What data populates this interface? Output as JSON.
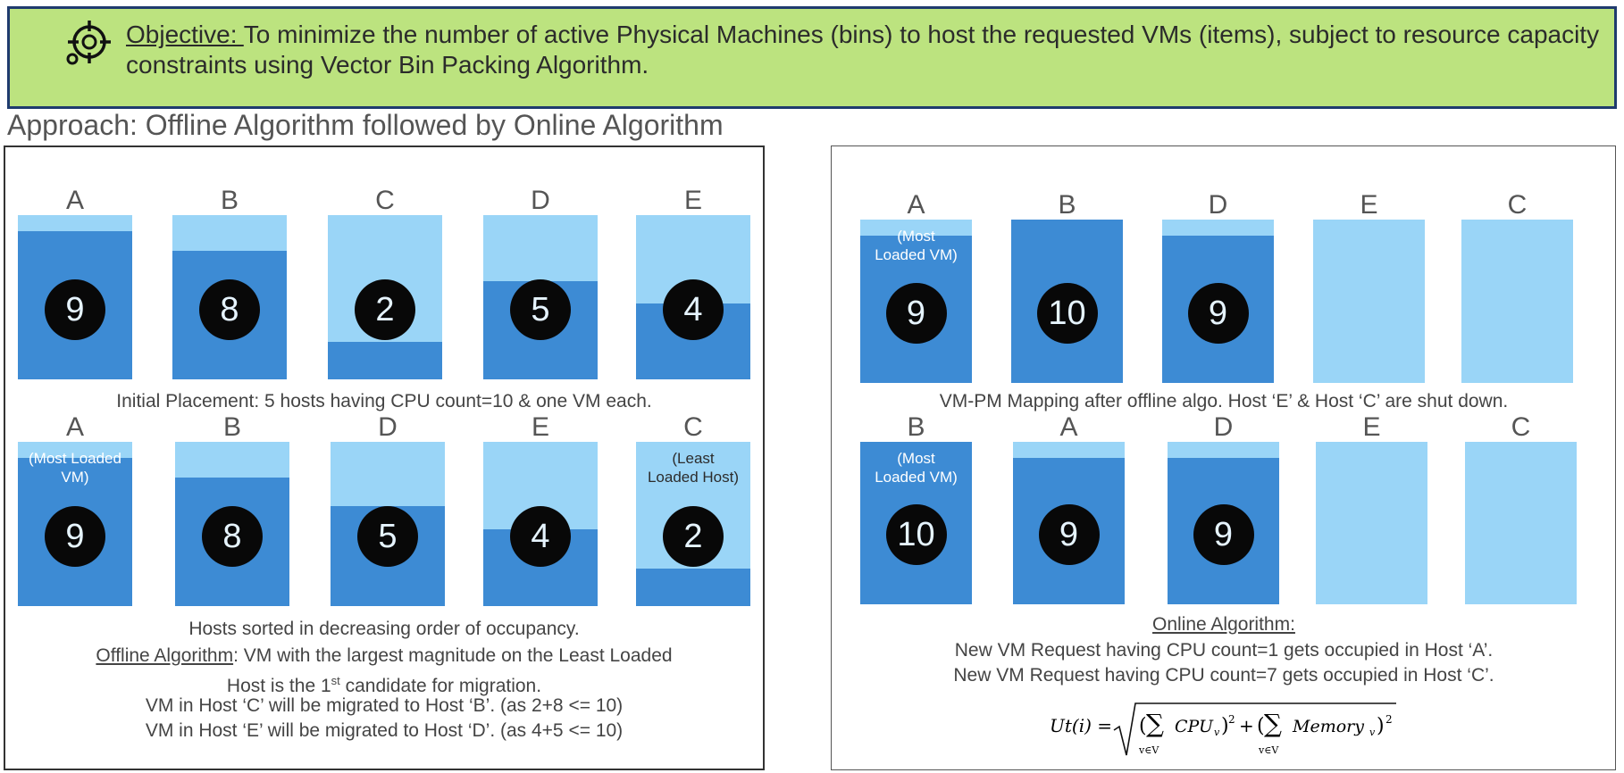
{
  "objective": {
    "label": "Objective: ",
    "text": "To minimize the number of active Physical Machines (bins) to host the requested VMs (items), subject to resource capacity constraints using Vector Bin Packing Algorithm.",
    "icon": "target-icon"
  },
  "approach": "Approach: Offline Algorithm followed by Online Algorithm",
  "colors": {
    "bin_empty": "#9ad5f7",
    "bin_used": "#3d8bd4",
    "objective_bg": "#bce37f",
    "objective_border": "#1f3b6e"
  },
  "panels": {
    "initial": {
      "caption": "Initial Placement: 5 hosts having CPU count=10 & one VM each.",
      "bins": [
        {
          "label": "A",
          "value": "9",
          "fill_fraction": 0.9
        },
        {
          "label": "B",
          "value": "8",
          "fill_fraction": 0.78
        },
        {
          "label": "C",
          "value": "2",
          "fill_fraction": 0.23
        },
        {
          "label": "D",
          "value": "5",
          "fill_fraction": 0.6
        },
        {
          "label": "E",
          "value": "4",
          "fill_fraction": 0.46
        }
      ]
    },
    "sorted": {
      "caption_sorted": "Hosts sorted in decreasing order of occupancy.",
      "offline_label": "Offline Algorithm",
      "offline_text": ": VM with the largest magnitude on the Least Loaded",
      "offline_text2_pre": "Host is the 1",
      "offline_text2_sup": "st",
      "offline_text2_post": " candidate for migration.",
      "migration_c": "VM in Host ‘C’ will be migrated to Host ‘B’. (as 2+8 <= 10)",
      "migration_e": "VM in Host ‘E’ will be migrated to Host ‘D’. (as 4+5 <= 10)",
      "bins": [
        {
          "label": "A",
          "value": "9",
          "fill_fraction": 0.9,
          "note": "(Most Loaded VM)"
        },
        {
          "label": "B",
          "value": "8",
          "fill_fraction": 0.78
        },
        {
          "label": "D",
          "value": "5",
          "fill_fraction": 0.61
        },
        {
          "label": "E",
          "value": "4",
          "fill_fraction": 0.47
        },
        {
          "label": "C",
          "value": "2",
          "fill_fraction": 0.23,
          "note": "(Least Loaded Host)"
        }
      ]
    },
    "after_offline": {
      "caption": "VM-PM Mapping after offline algo. Host ‘E’ & Host ‘C’ are shut down.",
      "bins": [
        {
          "label": "A",
          "value": "9",
          "fill_fraction": 0.9,
          "note": "(Most Loaded VM)"
        },
        {
          "label": "B",
          "value": "10",
          "fill_fraction": 1.0
        },
        {
          "label": "D",
          "value": "9",
          "fill_fraction": 0.9
        },
        {
          "label": "E",
          "value": "",
          "fill_fraction": 0
        },
        {
          "label": "C",
          "value": "",
          "fill_fraction": 0
        }
      ]
    },
    "online": {
      "title": "Online Algorithm:",
      "line1": "New VM Request having CPU count=1 gets occupied in Host ‘A’.",
      "line2": "New VM Request having CPU count=7 gets occupied in Host ‘C’.",
      "bins": [
        {
          "label": "B",
          "value": "10",
          "fill_fraction": 1.0,
          "note": "(Most Loaded VM)"
        },
        {
          "label": "A",
          "value": "9",
          "fill_fraction": 0.9
        },
        {
          "label": "D",
          "value": "9",
          "fill_fraction": 0.9
        },
        {
          "label": "E",
          "value": "",
          "fill_fraction": 0
        },
        {
          "label": "C",
          "value": "",
          "fill_fraction": 0
        }
      ]
    }
  },
  "formula": {
    "lhs": "Ut(i) =",
    "cpu": "CPU",
    "memory": "Memory",
    "sub_v": "v",
    "sub_range": "v∈V",
    "sub_i": "i",
    "exp": "2",
    "plus": "+"
  }
}
